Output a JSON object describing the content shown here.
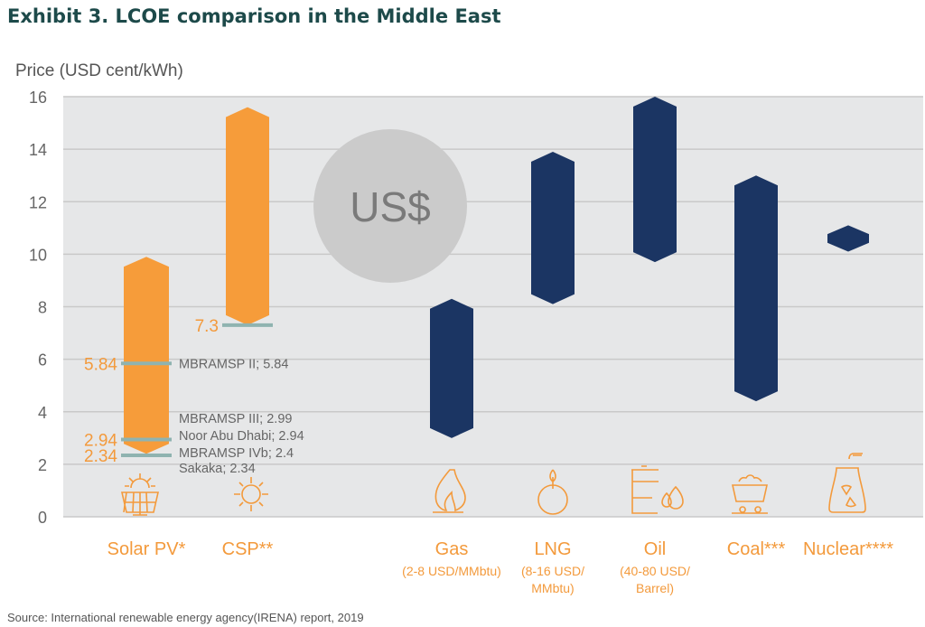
{
  "chart_data": {
    "type": "bar",
    "subtype": "floating-range",
    "title": "Exhibit 3. LCOE comparison in the Middle East",
    "ylabel": "Price (USD cent/kWh)",
    "ylim": [
      0,
      16
    ],
    "yticks": [
      "0",
      "2",
      "4",
      "6",
      "8",
      "10",
      "12",
      "14",
      "16"
    ],
    "grid": true,
    "center_badge": "US$",
    "categories": [
      {
        "name": "Solar PV*",
        "sub": [],
        "low": 2.4,
        "high": 9.9,
        "color": "#f69c3a",
        "icon": "solar-panel-icon"
      },
      {
        "name": "CSP**",
        "sub": [],
        "low": 7.3,
        "high": 15.6,
        "color": "#f69c3a",
        "icon": "sun-icon"
      },
      {
        "name": "Gas",
        "sub": [
          "(2-8 USD/MMbtu)"
        ],
        "low": 3.0,
        "high": 8.3,
        "color": "#1b3563",
        "icon": "flame-icon"
      },
      {
        "name": "LNG",
        "sub": [
          "(8-16 USD/",
          "MMbtu)"
        ],
        "low": 8.1,
        "high": 13.9,
        "color": "#1b3563",
        "icon": "lng-icon"
      },
      {
        "name": "Oil",
        "sub": [
          "(40-80 USD/",
          "Barrel)"
        ],
        "low": 9.7,
        "high": 16.0,
        "color": "#1b3563",
        "icon": "oil-barrel-icon"
      },
      {
        "name": "Coal***",
        "sub": [],
        "low": 4.4,
        "high": 13.0,
        "color": "#1b3563",
        "icon": "coal-cart-icon"
      },
      {
        "name": "Nuclear****",
        "sub": [],
        "low": 10.1,
        "high": 11.1,
        "color": "#1b3563",
        "icon": "nuclear-plant-icon"
      }
    ],
    "markers": [
      {
        "category": 1,
        "value": 7.3,
        "label": "7.3"
      },
      {
        "category": 0,
        "value": 5.84,
        "label": "5.84"
      },
      {
        "category": 0,
        "value": 2.94,
        "label": "2.94"
      },
      {
        "category": 0,
        "value": 2.34,
        "label": "2.34"
      }
    ],
    "annotations": [
      {
        "text": "MBRAMSP II; 5.84",
        "value": 5.84
      },
      {
        "text": "MBRAMSP III; 2.99",
        "value": 3.75
      },
      {
        "text": "Noor Abu Dhabi; 2.94",
        "value": 3.1
      },
      {
        "text": "MBRAMSP IVb; 2.4",
        "value": 2.45
      },
      {
        "text": "Sakaka; 2.34",
        "value": 1.85
      }
    ],
    "source": "Source: International renewable energy agency(IRENA) report, 2019"
  }
}
